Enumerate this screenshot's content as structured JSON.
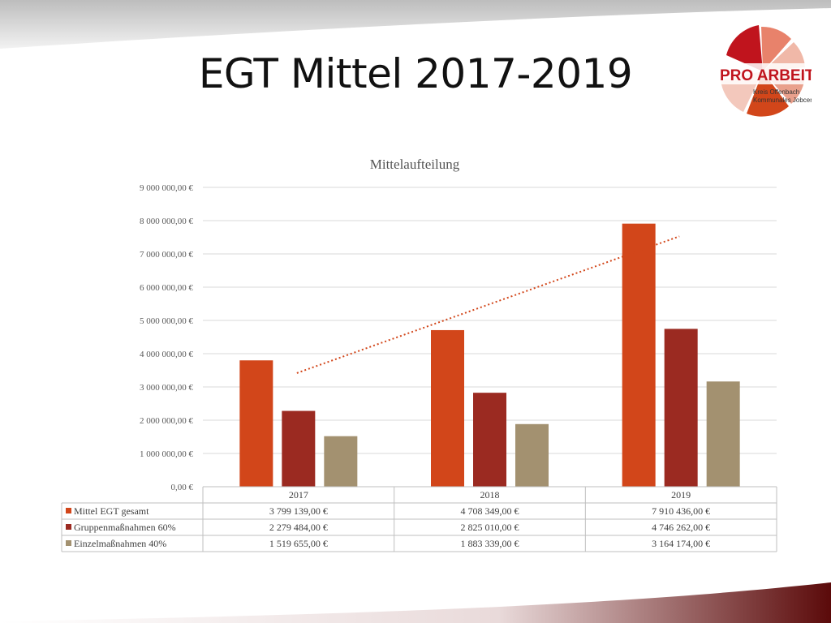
{
  "slide": {
    "title": "EGT Mittel 2017-2019",
    "colors": {
      "top_band": "#c9c9c9",
      "bottom_band": "#5b0a0a",
      "accent_red": "#c0141d"
    }
  },
  "logo": {
    "text": "PRO ARBEIT",
    "line1": "Kreis Offenbach",
    "line2": "Kommunales Jobcenter"
  },
  "chart_data": {
    "type": "bar",
    "title": "Mittelaufteilung",
    "categories": [
      "2017",
      "2018",
      "2019"
    ],
    "series": [
      {
        "name": "Mittel EGT gesamt",
        "color": "#d2461a",
        "values": [
          3799139,
          4708349,
          7910436
        ],
        "table_values": [
          "3 799 139,00 €",
          "4 708 349,00 €",
          "7 910 436,00 €"
        ]
      },
      {
        "name": "Gruppenmaßnahmen 60%",
        "color": "#9b2a21",
        "values": [
          2279484,
          2825010,
          4746262
        ],
        "table_values": [
          "2 279 484,00 €",
          "2 825 010,00 €",
          "4 746 262,00 €"
        ]
      },
      {
        "name": "Einzelmaßnahmen 40%",
        "color": "#a39170",
        "values": [
          1519655,
          1883339,
          3164174
        ],
        "table_values": [
          "1 519 655,00 €",
          "1 883 339,00 €",
          "3 164 174,00 €"
        ]
      }
    ],
    "trendline": {
      "series": "Mittel EGT gesamt",
      "type": "linear",
      "style": "dotted",
      "color": "#d2461a"
    },
    "ylim": [
      0,
      9000000
    ],
    "y_ticks": [
      0,
      1000000,
      2000000,
      3000000,
      4000000,
      5000000,
      6000000,
      7000000,
      8000000,
      9000000
    ],
    "y_tick_labels": [
      "0,00 €",
      "1 000 000,00 €",
      "2 000 000,00 €",
      "3 000 000,00 €",
      "4 000 000,00 €",
      "5 000 000,00 €",
      "6 000 000,00 €",
      "7 000 000,00 €",
      "8 000 000,00 €",
      "9 000 000,00 €"
    ],
    "grid": true,
    "legend": "data table below chart"
  }
}
